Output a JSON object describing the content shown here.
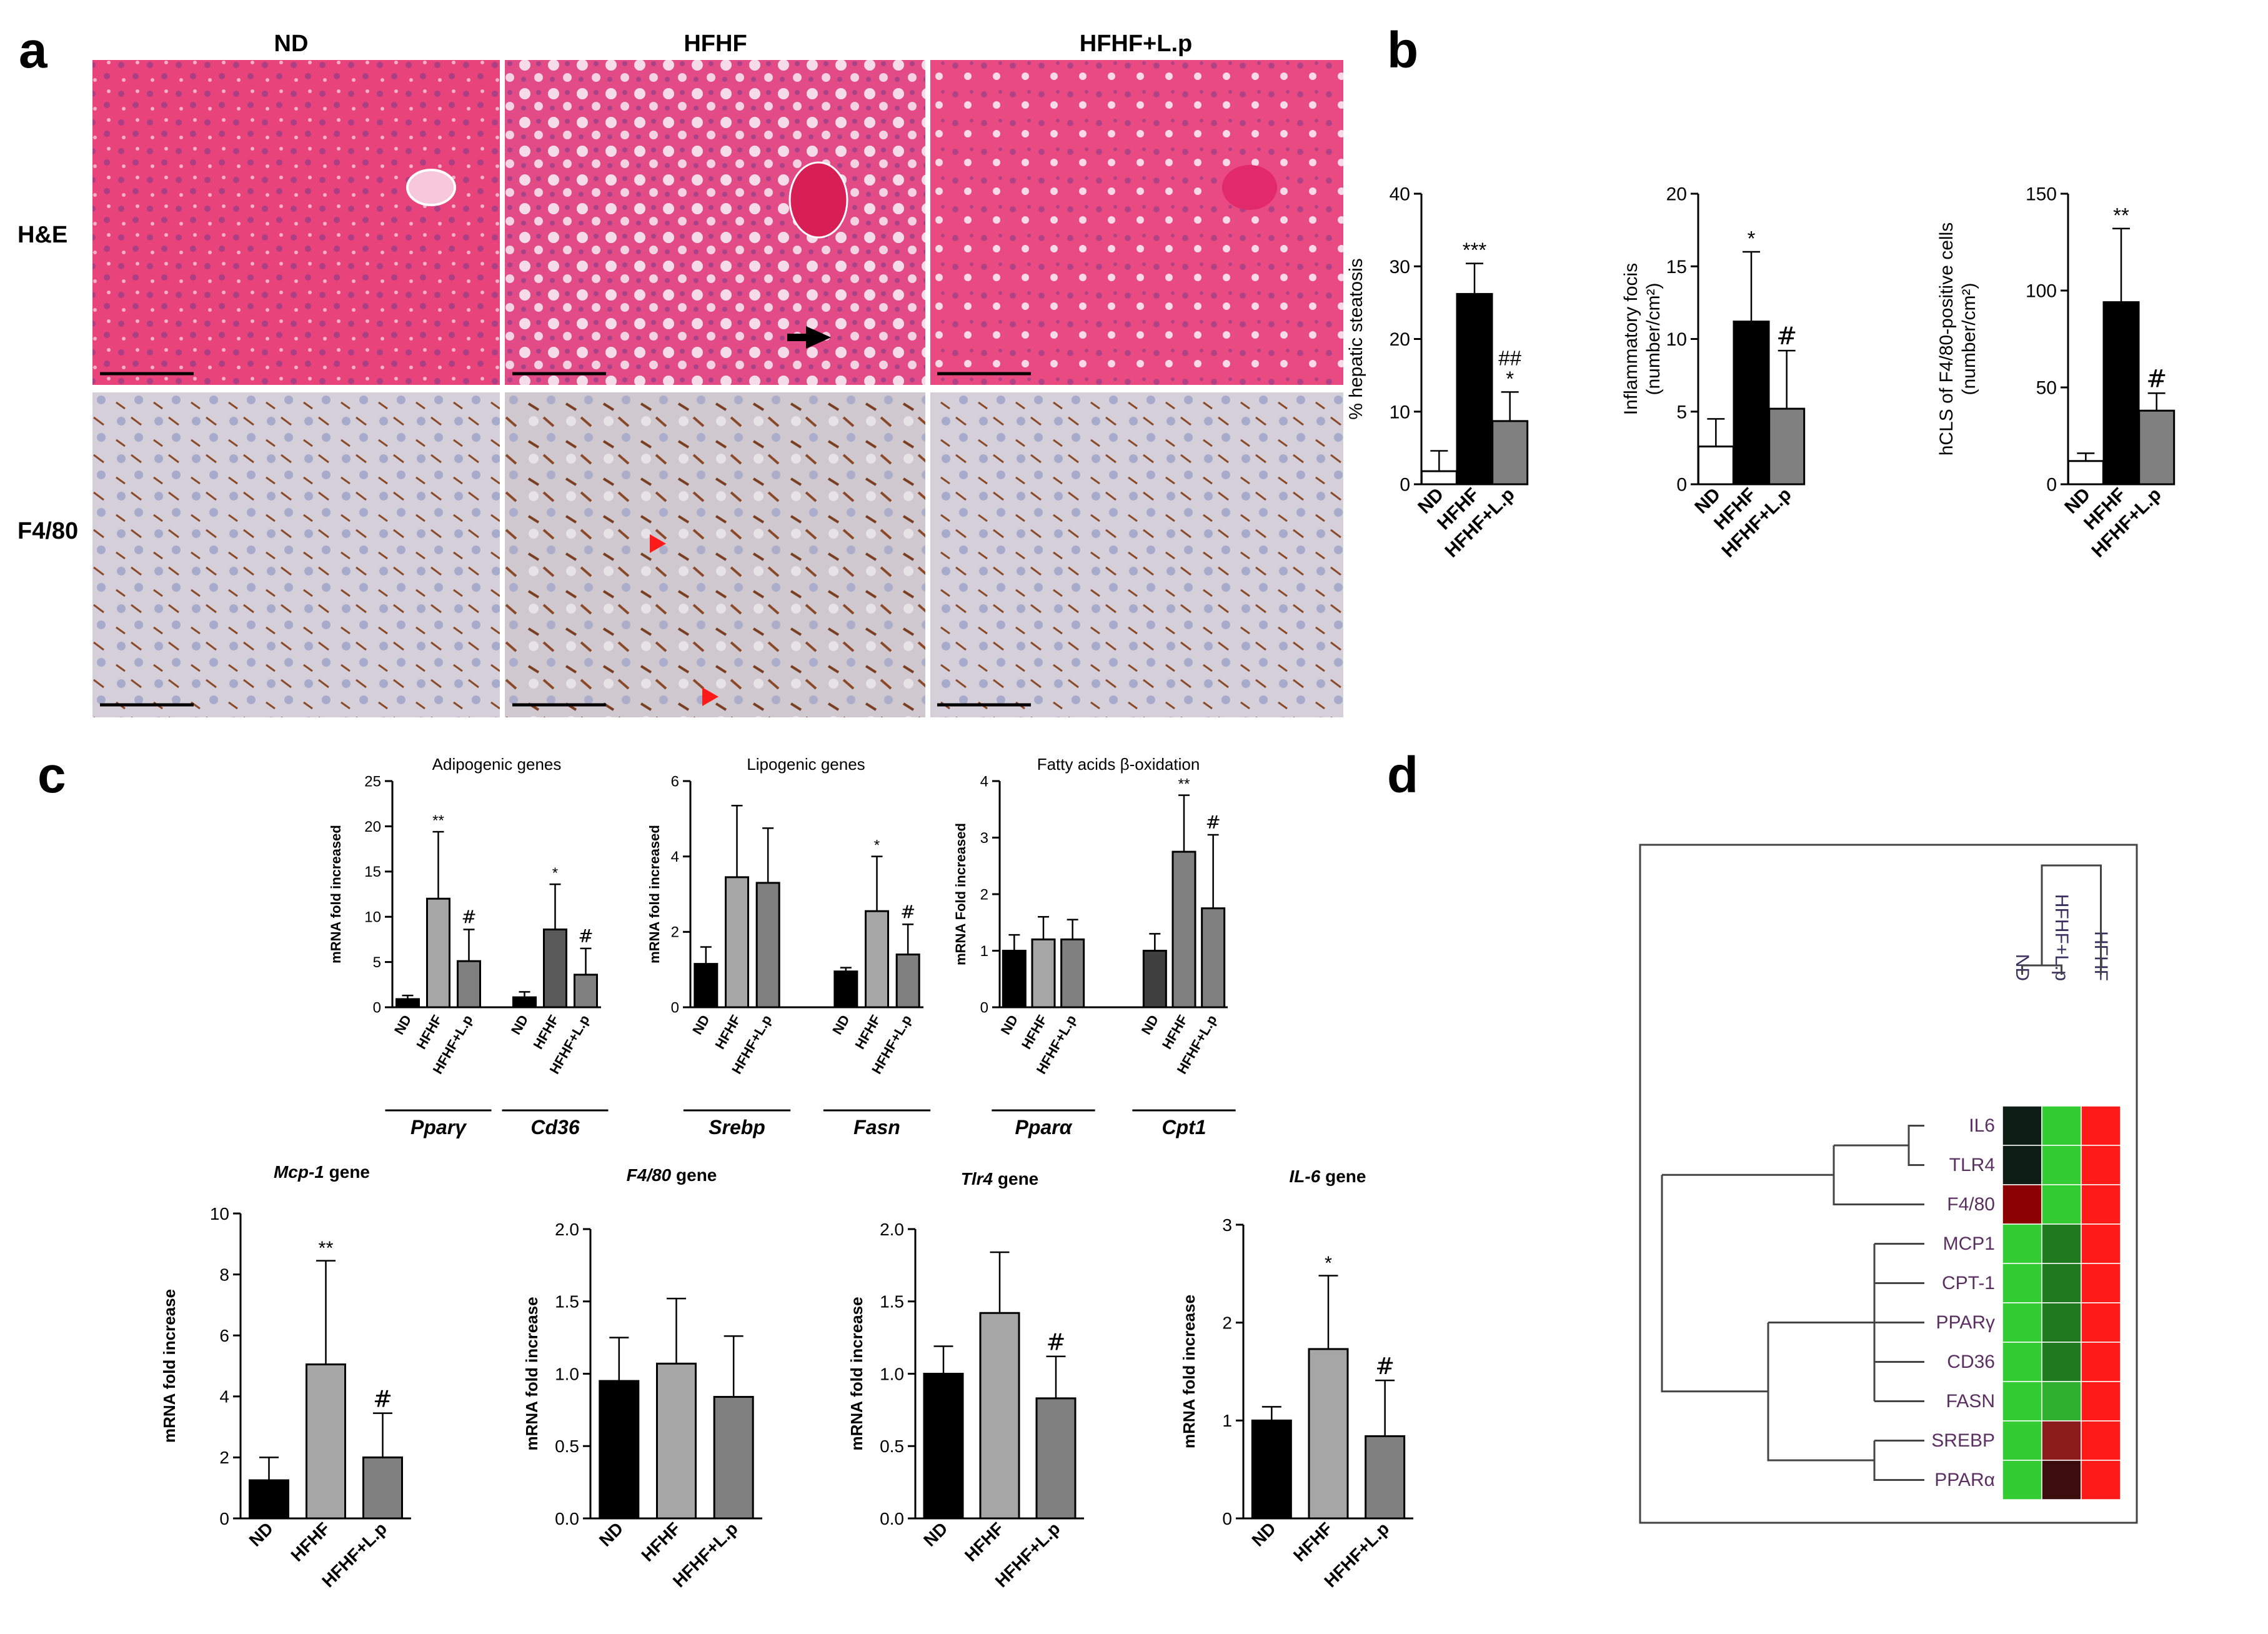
{
  "panel_letters": {
    "a": "a",
    "b": "b",
    "c": "c",
    "d": "d"
  },
  "panel_a": {
    "col_headers": [
      "ND",
      "HFHF",
      "HFHF+L.p"
    ],
    "row_labels": [
      "H&E",
      "F4/80"
    ],
    "colors": {
      "he": "#e8437a",
      "f480_bg": "#cfcad6",
      "f480_stain": "#8a4a2a"
    }
  },
  "chart_data": [
    {
      "id": "b1",
      "type": "bar",
      "categories": [
        "ND",
        "HFHF",
        "HFHF+L.p"
      ],
      "values": [
        1.8,
        26.2,
        8.7
      ],
      "errors": [
        2.8,
        4.2,
        4.0
      ],
      "bar_colors": [
        "#ffffff",
        "#000000",
        "#808080"
      ],
      "ylabel": "% hepatic steatosis",
      "ylim": [
        0,
        40
      ],
      "yticks": [
        0,
        10,
        20,
        30,
        40
      ],
      "annotations": [
        [
          "",
          ""
        ],
        [
          "***",
          ""
        ],
        [
          "*",
          "##"
        ]
      ]
    },
    {
      "id": "b2",
      "type": "bar",
      "categories": [
        "ND",
        "HFHF",
        "HFHF+L.p"
      ],
      "values": [
        2.6,
        11.2,
        5.2
      ],
      "errors": [
        1.9,
        4.8,
        4.0
      ],
      "bar_colors": [
        "#ffffff",
        "#000000",
        "#808080"
      ],
      "ylabel": "Inflammatory focis (number/cm²)",
      "ylim": [
        0,
        20
      ],
      "yticks": [
        0,
        5,
        10,
        15,
        20
      ],
      "annotations": [
        [
          "",
          ""
        ],
        [
          "*",
          ""
        ],
        [
          "",
          "#"
        ]
      ]
    },
    {
      "id": "b3",
      "type": "bar",
      "categories": [
        "ND",
        "HFHF",
        "HFHF+L.p"
      ],
      "values": [
        12,
        94,
        38
      ],
      "errors": [
        4,
        38,
        9
      ],
      "bar_colors": [
        "#ffffff",
        "#000000",
        "#808080"
      ],
      "ylabel": "hCLS of F4/80-positive cells (number/cm²)",
      "ylim": [
        0,
        150
      ],
      "yticks": [
        0,
        50,
        100,
        150
      ],
      "annotations": [
        [
          "",
          ""
        ],
        [
          "**",
          ""
        ],
        [
          "",
          "#"
        ]
      ]
    },
    {
      "id": "c1",
      "type": "bar",
      "title": "Adipogenic genes",
      "ylabel": "mRNA fold increased",
      "ylim": [
        0,
        25
      ],
      "yticks": [
        0,
        5,
        10,
        15,
        20,
        25
      ],
      "categories": [
        "ND",
        "HFHF",
        "HFHF+L.p",
        "ND",
        "HFHF",
        "HFHF+L.p"
      ],
      "values": [
        0.9,
        12,
        5.1,
        1.1,
        8.6,
        3.6
      ],
      "errors": [
        0.4,
        7.4,
        3.5,
        0.6,
        5.0,
        2.9
      ],
      "bar_colors": [
        "#000000",
        "#a6a6a6",
        "#808080",
        "#000000",
        "#595959",
        "#808080"
      ],
      "groups": [
        "Pparγ",
        "Cd36"
      ],
      "annotations": [
        [
          "",
          ""
        ],
        [
          "**",
          ""
        ],
        [
          "",
          "#"
        ],
        [
          "",
          ""
        ],
        [
          "*",
          ""
        ],
        [
          "",
          "#"
        ]
      ]
    },
    {
      "id": "c2",
      "type": "bar",
      "title": "Lipogenic genes",
      "ylabel": "mRNA fold increased",
      "ylim": [
        0,
        6
      ],
      "yticks": [
        0,
        2,
        4,
        6
      ],
      "categories": [
        "ND",
        "HFHF",
        "HFHF+L.p",
        "ND",
        "HFHF",
        "HFHF+L.p"
      ],
      "values": [
        1.15,
        3.45,
        3.3,
        0.95,
        2.55,
        1.4
      ],
      "errors": [
        0.45,
        1.9,
        1.45,
        0.1,
        1.45,
        0.8
      ],
      "bar_colors": [
        "#000000",
        "#a6a6a6",
        "#808080",
        "#000000",
        "#a6a6a6",
        "#808080"
      ],
      "groups": [
        "Srebp",
        "Fasn"
      ],
      "annotations": [
        [
          "",
          ""
        ],
        [
          "",
          ""
        ],
        [
          "",
          ""
        ],
        [
          "",
          ""
        ],
        [
          "*",
          ""
        ],
        [
          "",
          "#"
        ]
      ]
    },
    {
      "id": "c3",
      "type": "bar",
      "title": "Fatty acids β-oxidation",
      "ylabel": "mRNA Fold increased",
      "ylim": [
        0,
        4
      ],
      "yticks": [
        0,
        1,
        2,
        3,
        4
      ],
      "categories": [
        "ND",
        "HFHF",
        "HFHF+L.p",
        "ND",
        "HFHF",
        "HFHF+L.p"
      ],
      "values": [
        1.0,
        1.2,
        1.2,
        1.0,
        2.75,
        1.75
      ],
      "errors": [
        0.28,
        0.4,
        0.35,
        0.3,
        1.0,
        1.3
      ],
      "bar_colors": [
        "#000000",
        "#a6a6a6",
        "#808080",
        "#404040",
        "#808080",
        "#808080"
      ],
      "groups": [
        "Pparα",
        "Cpt1"
      ],
      "annotations": [
        [
          "",
          ""
        ],
        [
          "",
          ""
        ],
        [
          "",
          ""
        ],
        [
          "",
          ""
        ],
        [
          "**",
          ""
        ],
        [
          "",
          "#"
        ]
      ]
    },
    {
      "id": "c4",
      "type": "bar",
      "title_italic": "Mcp-1",
      "title_rest": " gene",
      "ylabel": "mRNA fold increase",
      "ylim": [
        0,
        10
      ],
      "yticks": [
        0,
        2,
        4,
        6,
        8,
        10
      ],
      "categories": [
        "ND",
        "HFHF",
        "HFHF+L.p"
      ],
      "values": [
        1.25,
        5.05,
        2.0
      ],
      "errors": [
        0.75,
        3.4,
        1.45
      ],
      "bar_colors": [
        "#000000",
        "#a6a6a6",
        "#808080"
      ],
      "annotations": [
        [
          "",
          ""
        ],
        [
          "**",
          ""
        ],
        [
          "",
          "#"
        ]
      ]
    },
    {
      "id": "c5",
      "type": "bar",
      "title_italic": "F4/80",
      "title_rest": " gene",
      "ylabel": "mRNA fold increase",
      "ylim": [
        0,
        2
      ],
      "yticks": [
        "0.0",
        "0.5",
        "1.0",
        "1.5",
        "2.0"
      ],
      "categories": [
        "ND",
        "HFHF",
        "HFHF+L.p"
      ],
      "values": [
        0.95,
        1.07,
        0.84
      ],
      "errors": [
        0.3,
        0.45,
        0.42
      ],
      "bar_colors": [
        "#000000",
        "#a6a6a6",
        "#808080"
      ],
      "annotations": [
        [
          "",
          ""
        ],
        [
          "",
          ""
        ],
        [
          "",
          ""
        ]
      ]
    },
    {
      "id": "c6",
      "type": "bar",
      "title_italic": "Tlr4",
      "title_rest": " gene",
      "ylabel": "mRNA fold increase",
      "ylim": [
        0,
        2
      ],
      "yticks": [
        "0.0",
        "0.5",
        "1.0",
        "1.5",
        "2.0"
      ],
      "categories": [
        "ND",
        "HFHF",
        "HFHF+L.p"
      ],
      "values": [
        1.0,
        1.42,
        0.83
      ],
      "errors": [
        0.19,
        0.42,
        0.29
      ],
      "bar_colors": [
        "#000000",
        "#a6a6a6",
        "#808080"
      ],
      "annotations": [
        [
          "",
          ""
        ],
        [
          "",
          ""
        ],
        [
          "",
          "#"
        ]
      ]
    },
    {
      "id": "c7",
      "type": "bar",
      "title_italic": "IL-6",
      "title_rest": " gene",
      "ylabel": "mRNA fold increase",
      "ylim": [
        0,
        3
      ],
      "yticks": [
        0,
        1,
        2,
        3
      ],
      "categories": [
        "ND",
        "HFHF",
        "HFHF+L.p"
      ],
      "values": [
        1.0,
        1.73,
        0.84
      ],
      "errors": [
        0.14,
        0.75,
        0.57
      ],
      "bar_colors": [
        "#000000",
        "#a6a6a6",
        "#808080"
      ],
      "annotations": [
        [
          "",
          ""
        ],
        [
          "*",
          ""
        ],
        [
          "",
          "#"
        ]
      ]
    },
    {
      "id": "d",
      "type": "heatmap",
      "columns": [
        "ND",
        "HFHF+L.p",
        "HFHF"
      ],
      "rows": [
        "IL6",
        "TLR4",
        "F4/80",
        "MCP1",
        "CPT-1",
        "PPARγ",
        "CD36",
        "FASN",
        "SREBP",
        "PPARα"
      ],
      "colors": [
        [
          "#0d1c14",
          "#33cc33",
          "#ff1a1a"
        ],
        [
          "#0d1c14",
          "#33cc33",
          "#ff1a1a"
        ],
        [
          "#8b0000",
          "#33cc33",
          "#ff1a1a"
        ],
        [
          "#33cc33",
          "#1f7a1f",
          "#ff1a1a"
        ],
        [
          "#33cc33",
          "#1f7a1f",
          "#ff1a1a"
        ],
        [
          "#33cc33",
          "#1f7a1f",
          "#ff1a1a"
        ],
        [
          "#33cc33",
          "#1f7a1f",
          "#ff1a1a"
        ],
        [
          "#33cc33",
          "#2fb02f",
          "#ff1a1a"
        ],
        [
          "#33cc33",
          "#8b1a1a",
          "#ff1a1a"
        ],
        [
          "#33cc33",
          "#3d0c0c",
          "#ff1a1a"
        ]
      ]
    }
  ]
}
